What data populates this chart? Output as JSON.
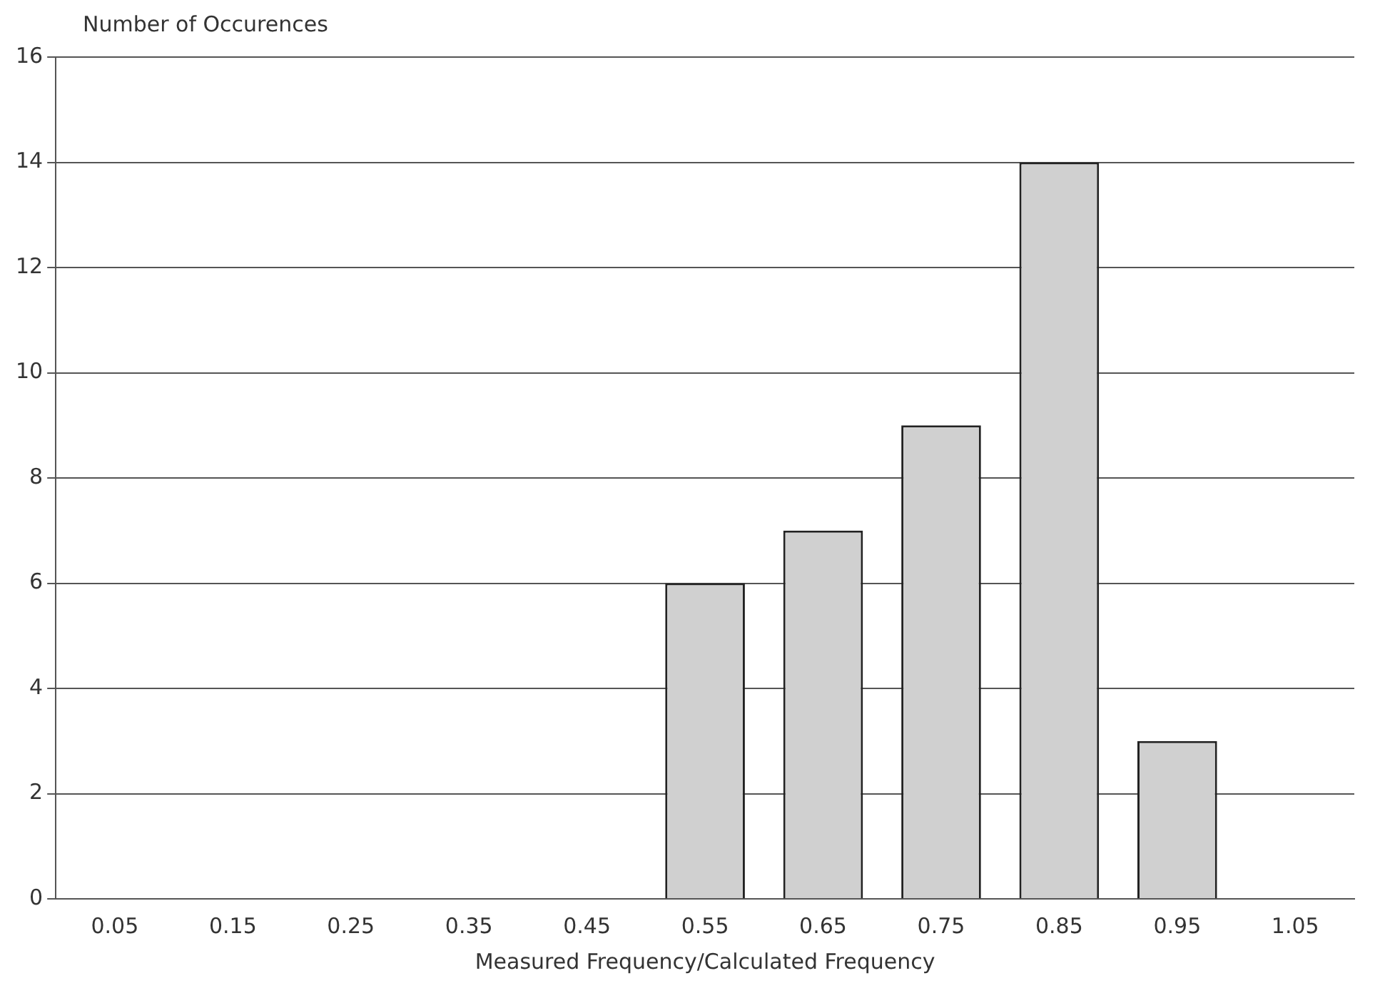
{
  "chart_data": {
    "type": "bar",
    "ylabel": "Number of Occurences",
    "xlabel": "Measured Frequency/Calculated Frequency",
    "categories": [
      "0.05",
      "0.15",
      "0.25",
      "0.35",
      "0.45",
      "0.55",
      "0.65",
      "0.75",
      "0.85",
      "0.95",
      "1.05"
    ],
    "values": [
      0,
      0,
      0,
      0,
      0,
      6,
      7,
      9,
      14,
      3,
      0
    ],
    "color": "#d0d0d0",
    "ylim": [
      0,
      16
    ],
    "yticks": [
      0,
      2,
      4,
      6,
      8,
      10,
      12,
      14,
      16
    ],
    "grid": "y"
  }
}
